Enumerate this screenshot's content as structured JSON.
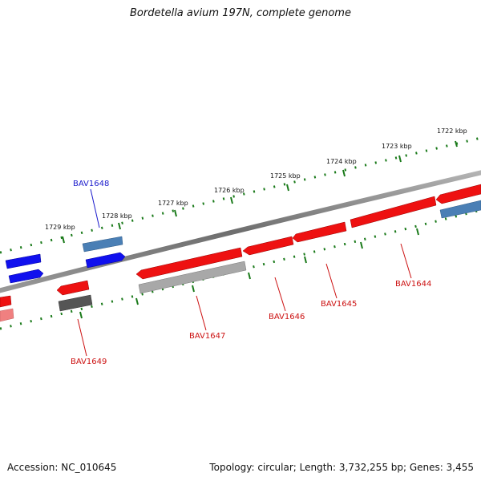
{
  "title": "Bordetella avium 197N, complete genome",
  "footer": {
    "accession": "Accession: NC_010645",
    "summary": "Topology: circular; Length: 3,732,255 bp; Genes: 3,455"
  },
  "ruler_labels": [
    "1722 kbp",
    "1723 kbp",
    "1724 kbp",
    "1725 kbp",
    "1726 kbp",
    "1727 kbp",
    "1728 kbp",
    "1729 kbp"
  ],
  "gene_labels": {
    "BAV1644": "BAV1644",
    "BAV1645": "BAV1645",
    "BAV1646": "BAV1646",
    "BAV1647": "BAV1647",
    "BAV1648": "BAV1648",
    "BAV1649": "BAV1649"
  },
  "colors": {
    "forward_cds": "#1010ee",
    "forward_gene": "#4a7fb5",
    "reverse_cds": "#ee1111",
    "reverse_gene": "#9a9a9a",
    "pseudo_gene": "#555555",
    "backbone": "#808080",
    "ticks": "#1a7a1a",
    "forward_label": "#1a1acc",
    "reverse_label": "#cc1111"
  }
}
